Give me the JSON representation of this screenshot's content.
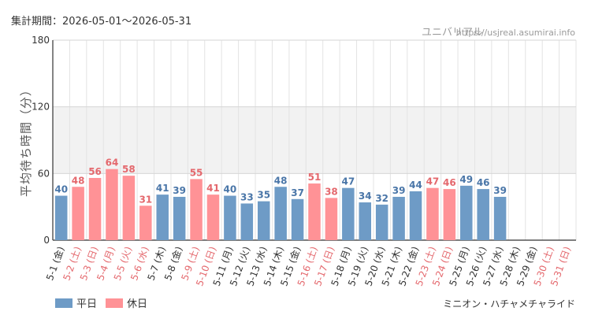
{
  "header": {
    "period_label": "集計期間：2026-05-01～2026-05-31",
    "site_name": "ユニバリアル",
    "site_url": "https://usjreal.asumirai.info"
  },
  "footer": {
    "attraction": "ミニオン・ハチャメチャライド"
  },
  "colors": {
    "weekday": "#6e9bc6",
    "holiday": "#ff9296",
    "weekday_text": "#4a76a8",
    "holiday_text": "#e4686d",
    "band": "#f2f2f2",
    "grid": "#e3e3e3"
  },
  "chart_data": {
    "type": "bar",
    "title": "",
    "ylabel": "平均待ち時間（分）",
    "xlabel": "",
    "ylim": [
      0,
      180
    ],
    "yticks": [
      0,
      60,
      120,
      180
    ],
    "legend": {
      "position": "bottom-left",
      "entries": [
        {
          "key": "weekday",
          "label": "平日"
        },
        {
          "key": "holiday",
          "label": "休日"
        }
      ]
    },
    "categories": [
      "5-1 (金)",
      "5-2 (土)",
      "5-3 (日)",
      "5-4 (月)",
      "5-5 (火)",
      "5-6 (水)",
      "5-7 (木)",
      "5-8 (金)",
      "5-9 (土)",
      "5-10 (日)",
      "5-11 (月)",
      "5-12 (火)",
      "5-13 (水)",
      "5-14 (木)",
      "5-15 (金)",
      "5-16 (土)",
      "5-17 (日)",
      "5-18 (月)",
      "5-19 (火)",
      "5-20 (水)",
      "5-21 (木)",
      "5-22 (金)",
      "5-23 (土)",
      "5-24 (日)",
      "5-25 (月)",
      "5-26 (火)",
      "5-27 (水)",
      "5-28 (木)",
      "5-29 (金)",
      "5-30 (土)",
      "5-31 (日)"
    ],
    "values": [
      40,
      48,
      56,
      64,
      58,
      31,
      41,
      39,
      55,
      41,
      40,
      33,
      35,
      48,
      37,
      51,
      38,
      47,
      34,
      32,
      39,
      44,
      47,
      46,
      49,
      46,
      39,
      null,
      null,
      null,
      null
    ],
    "day_type": [
      "weekday",
      "holiday",
      "holiday",
      "holiday",
      "holiday",
      "holiday",
      "weekday",
      "weekday",
      "holiday",
      "holiday",
      "weekday",
      "weekday",
      "weekday",
      "weekday",
      "weekday",
      "holiday",
      "holiday",
      "weekday",
      "weekday",
      "weekday",
      "weekday",
      "weekday",
      "holiday",
      "holiday",
      "weekday",
      "weekday",
      "weekday",
      "weekday",
      "weekday",
      "holiday",
      "holiday"
    ]
  }
}
